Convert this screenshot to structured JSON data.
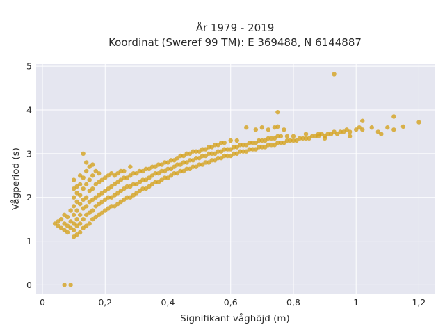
{
  "chart_data": {
    "type": "scatter",
    "title_line1": "År 1979 - 2019",
    "title_line2": "Koordinat (Sweref 99 TM): E 369488, N 6144887",
    "xlabel": "Signifikant våghöjd (m)",
    "ylabel": "Vågperiod (s)",
    "xlim": [
      -0.02,
      1.25
    ],
    "ylim": [
      -0.2,
      5.05
    ],
    "x_ticks": [
      0,
      0.2,
      0.4,
      0.6,
      0.8,
      1,
      1.2
    ],
    "x_tick_labels": [
      "0",
      "0,2",
      "0,4",
      "0,6",
      "0,8",
      "1",
      "1,2"
    ],
    "y_ticks": [
      0,
      1,
      2,
      3,
      4,
      5
    ],
    "y_tick_labels": [
      "0",
      "1",
      "2",
      "3",
      "4",
      "5"
    ],
    "grid": true,
    "colors": {
      "background": "#e5e6f0",
      "grid": "#ffffff",
      "marker": "#d4a21f"
    },
    "series": [
      {
        "points": [
          [
            0.07,
            0.0
          ],
          [
            0.09,
            0.0
          ],
          [
            0.04,
            1.4
          ],
          [
            0.05,
            1.35
          ],
          [
            0.05,
            1.45
          ],
          [
            0.06,
            1.3
          ],
          [
            0.06,
            1.5
          ],
          [
            0.07,
            1.25
          ],
          [
            0.07,
            1.4
          ],
          [
            0.07,
            1.6
          ],
          [
            0.08,
            1.2
          ],
          [
            0.08,
            1.35
          ],
          [
            0.08,
            1.55
          ],
          [
            0.09,
            1.3
          ],
          [
            0.09,
            1.45
          ],
          [
            0.09,
            1.7
          ],
          [
            0.1,
            1.1
          ],
          [
            0.1,
            1.25
          ],
          [
            0.1,
            1.4
          ],
          [
            0.1,
            1.6
          ],
          [
            0.1,
            1.8
          ],
          [
            0.1,
            2.0
          ],
          [
            0.1,
            2.2
          ],
          [
            0.1,
            2.4
          ],
          [
            0.11,
            1.15
          ],
          [
            0.11,
            1.35
          ],
          [
            0.11,
            1.5
          ],
          [
            0.11,
            1.7
          ],
          [
            0.11,
            1.9
          ],
          [
            0.11,
            2.1
          ],
          [
            0.11,
            2.25
          ],
          [
            0.12,
            1.2
          ],
          [
            0.12,
            1.4
          ],
          [
            0.12,
            1.6
          ],
          [
            0.12,
            1.85
          ],
          [
            0.12,
            2.05
          ],
          [
            0.12,
            2.3
          ],
          [
            0.12,
            2.5
          ],
          [
            0.13,
            1.3
          ],
          [
            0.13,
            1.5
          ],
          [
            0.13,
            1.75
          ],
          [
            0.13,
            1.95
          ],
          [
            0.13,
            2.2
          ],
          [
            0.13,
            2.45
          ],
          [
            0.13,
            3.0
          ],
          [
            0.14,
            1.35
          ],
          [
            0.14,
            1.6
          ],
          [
            0.14,
            1.8
          ],
          [
            0.14,
            2.0
          ],
          [
            0.14,
            2.3
          ],
          [
            0.14,
            2.6
          ],
          [
            0.14,
            2.8
          ],
          [
            0.15,
            1.4
          ],
          [
            0.15,
            1.65
          ],
          [
            0.15,
            1.9
          ],
          [
            0.15,
            2.15
          ],
          [
            0.15,
            2.4
          ],
          [
            0.15,
            2.7
          ],
          [
            0.16,
            1.5
          ],
          [
            0.16,
            1.7
          ],
          [
            0.16,
            1.95
          ],
          [
            0.16,
            2.2
          ],
          [
            0.16,
            2.5
          ],
          [
            0.16,
            2.75
          ],
          [
            0.17,
            1.55
          ],
          [
            0.17,
            1.8
          ],
          [
            0.17,
            2.0
          ],
          [
            0.17,
            2.3
          ],
          [
            0.17,
            2.6
          ],
          [
            0.18,
            1.6
          ],
          [
            0.18,
            1.85
          ],
          [
            0.18,
            2.05
          ],
          [
            0.18,
            2.35
          ],
          [
            0.18,
            2.55
          ],
          [
            0.19,
            1.65
          ],
          [
            0.19,
            1.9
          ],
          [
            0.19,
            2.1
          ],
          [
            0.19,
            2.4
          ],
          [
            0.2,
            1.7
          ],
          [
            0.2,
            1.95
          ],
          [
            0.2,
            2.15
          ],
          [
            0.2,
            2.45
          ],
          [
            0.21,
            1.75
          ],
          [
            0.21,
            2.0
          ],
          [
            0.21,
            2.2
          ],
          [
            0.21,
            2.5
          ],
          [
            0.22,
            1.8
          ],
          [
            0.22,
            2.0
          ],
          [
            0.22,
            2.25
          ],
          [
            0.22,
            2.55
          ],
          [
            0.23,
            1.8
          ],
          [
            0.23,
            2.05
          ],
          [
            0.23,
            2.3
          ],
          [
            0.23,
            2.5
          ],
          [
            0.24,
            1.85
          ],
          [
            0.24,
            2.1
          ],
          [
            0.24,
            2.35
          ],
          [
            0.24,
            2.55
          ],
          [
            0.25,
            1.9
          ],
          [
            0.25,
            2.15
          ],
          [
            0.25,
            2.4
          ],
          [
            0.25,
            2.6
          ],
          [
            0.26,
            1.95
          ],
          [
            0.26,
            2.2
          ],
          [
            0.26,
            2.45
          ],
          [
            0.26,
            2.6
          ],
          [
            0.27,
            2.0
          ],
          [
            0.27,
            2.25
          ],
          [
            0.27,
            2.45
          ],
          [
            0.28,
            2.0
          ],
          [
            0.28,
            2.25
          ],
          [
            0.28,
            2.5
          ],
          [
            0.28,
            2.7
          ],
          [
            0.29,
            2.05
          ],
          [
            0.29,
            2.3
          ],
          [
            0.29,
            2.55
          ],
          [
            0.3,
            2.1
          ],
          [
            0.3,
            2.3
          ],
          [
            0.3,
            2.55
          ],
          [
            0.31,
            2.15
          ],
          [
            0.31,
            2.35
          ],
          [
            0.31,
            2.6
          ],
          [
            0.32,
            2.2
          ],
          [
            0.32,
            2.4
          ],
          [
            0.32,
            2.6
          ],
          [
            0.33,
            2.2
          ],
          [
            0.33,
            2.4
          ],
          [
            0.33,
            2.65
          ],
          [
            0.34,
            2.25
          ],
          [
            0.34,
            2.45
          ],
          [
            0.34,
            2.65
          ],
          [
            0.35,
            2.3
          ],
          [
            0.35,
            2.5
          ],
          [
            0.35,
            2.7
          ],
          [
            0.36,
            2.35
          ],
          [
            0.36,
            2.55
          ],
          [
            0.36,
            2.7
          ],
          [
            0.37,
            2.35
          ],
          [
            0.37,
            2.55
          ],
          [
            0.37,
            2.75
          ],
          [
            0.38,
            2.4
          ],
          [
            0.38,
            2.6
          ],
          [
            0.38,
            2.75
          ],
          [
            0.39,
            2.45
          ],
          [
            0.39,
            2.6
          ],
          [
            0.39,
            2.8
          ],
          [
            0.4,
            2.45
          ],
          [
            0.4,
            2.65
          ],
          [
            0.4,
            2.8
          ],
          [
            0.41,
            2.5
          ],
          [
            0.41,
            2.65
          ],
          [
            0.41,
            2.85
          ],
          [
            0.42,
            2.55
          ],
          [
            0.42,
            2.7
          ],
          [
            0.42,
            2.85
          ],
          [
            0.43,
            2.55
          ],
          [
            0.43,
            2.75
          ],
          [
            0.43,
            2.9
          ],
          [
            0.44,
            2.6
          ],
          [
            0.44,
            2.75
          ],
          [
            0.44,
            2.95
          ],
          [
            0.45,
            2.6
          ],
          [
            0.45,
            2.8
          ],
          [
            0.45,
            2.95
          ],
          [
            0.46,
            2.65
          ],
          [
            0.46,
            2.8
          ],
          [
            0.46,
            3.0
          ],
          [
            0.47,
            2.65
          ],
          [
            0.47,
            2.85
          ],
          [
            0.47,
            3.0
          ],
          [
            0.48,
            2.7
          ],
          [
            0.48,
            2.85
          ],
          [
            0.48,
            3.05
          ],
          [
            0.49,
            2.7
          ],
          [
            0.49,
            2.9
          ],
          [
            0.49,
            3.05
          ],
          [
            0.5,
            2.75
          ],
          [
            0.5,
            2.9
          ],
          [
            0.5,
            3.05
          ],
          [
            0.51,
            2.75
          ],
          [
            0.51,
            2.95
          ],
          [
            0.51,
            3.1
          ],
          [
            0.52,
            2.8
          ],
          [
            0.52,
            2.95
          ],
          [
            0.52,
            3.1
          ],
          [
            0.53,
            2.8
          ],
          [
            0.53,
            3.0
          ],
          [
            0.53,
            3.15
          ],
          [
            0.54,
            2.85
          ],
          [
            0.54,
            3.0
          ],
          [
            0.54,
            3.15
          ],
          [
            0.55,
            2.85
          ],
          [
            0.55,
            3.0
          ],
          [
            0.55,
            3.2
          ],
          [
            0.56,
            2.9
          ],
          [
            0.56,
            3.05
          ],
          [
            0.56,
            3.2
          ],
          [
            0.57,
            2.9
          ],
          [
            0.57,
            3.05
          ],
          [
            0.57,
            3.25
          ],
          [
            0.58,
            2.95
          ],
          [
            0.58,
            3.1
          ],
          [
            0.58,
            3.25
          ],
          [
            0.59,
            2.95
          ],
          [
            0.59,
            3.1
          ],
          [
            0.6,
            2.95
          ],
          [
            0.6,
            3.1
          ],
          [
            0.6,
            3.3
          ],
          [
            0.61,
            3.0
          ],
          [
            0.61,
            3.15
          ],
          [
            0.62,
            3.0
          ],
          [
            0.62,
            3.15
          ],
          [
            0.62,
            3.3
          ],
          [
            0.63,
            3.05
          ],
          [
            0.63,
            3.2
          ],
          [
            0.64,
            3.05
          ],
          [
            0.64,
            3.2
          ],
          [
            0.65,
            3.05
          ],
          [
            0.65,
            3.2
          ],
          [
            0.65,
            3.6
          ],
          [
            0.66,
            3.1
          ],
          [
            0.66,
            3.25
          ],
          [
            0.67,
            3.1
          ],
          [
            0.67,
            3.25
          ],
          [
            0.68,
            3.1
          ],
          [
            0.68,
            3.25
          ],
          [
            0.69,
            3.15
          ],
          [
            0.69,
            3.3
          ],
          [
            0.7,
            3.15
          ],
          [
            0.7,
            3.3
          ],
          [
            0.7,
            3.6
          ],
          [
            0.71,
            3.15
          ],
          [
            0.71,
            3.3
          ],
          [
            0.72,
            3.2
          ],
          [
            0.72,
            3.35
          ],
          [
            0.73,
            3.2
          ],
          [
            0.73,
            3.35
          ],
          [
            0.74,
            3.2
          ],
          [
            0.74,
            3.35
          ],
          [
            0.75,
            3.25
          ],
          [
            0.75,
            3.4
          ],
          [
            0.75,
            3.62
          ],
          [
            0.76,
            3.25
          ],
          [
            0.76,
            3.4
          ],
          [
            0.77,
            3.25
          ],
          [
            0.77,
            3.55
          ],
          [
            0.78,
            3.3
          ],
          [
            0.78,
            3.4
          ],
          [
            0.79,
            3.3
          ],
          [
            0.8,
            3.3
          ],
          [
            0.8,
            3.4
          ],
          [
            0.81,
            3.3
          ],
          [
            0.82,
            3.35
          ],
          [
            0.83,
            3.35
          ],
          [
            0.84,
            3.35
          ],
          [
            0.84,
            3.45
          ],
          [
            0.85,
            3.35
          ],
          [
            0.86,
            3.4
          ],
          [
            0.87,
            3.4
          ],
          [
            0.88,
            3.4
          ],
          [
            0.89,
            3.45
          ],
          [
            0.9,
            3.4
          ],
          [
            0.91,
            3.45
          ],
          [
            0.92,
            3.45
          ],
          [
            0.93,
            3.5
          ],
          [
            0.94,
            3.45
          ],
          [
            0.95,
            3.5
          ],
          [
            0.96,
            3.5
          ],
          [
            0.97,
            3.55
          ],
          [
            0.98,
            3.5
          ],
          [
            1.0,
            3.55
          ],
          [
            1.01,
            3.6
          ],
          [
            1.02,
            3.55
          ],
          [
            1.05,
            3.6
          ],
          [
            1.07,
            3.5
          ],
          [
            1.08,
            3.45
          ],
          [
            1.1,
            3.6
          ],
          [
            1.12,
            3.55
          ],
          [
            1.15,
            3.62
          ],
          [
            1.2,
            3.72
          ],
          [
            1.12,
            3.85
          ],
          [
            1.02,
            3.75
          ],
          [
            0.93,
            4.82
          ],
          [
            0.75,
            3.95
          ],
          [
            0.74,
            3.6
          ],
          [
            0.72,
            3.55
          ],
          [
            0.68,
            3.55
          ],
          [
            0.88,
            3.45
          ],
          [
            0.9,
            3.35
          ],
          [
            0.98,
            3.4
          ]
        ]
      }
    ]
  }
}
